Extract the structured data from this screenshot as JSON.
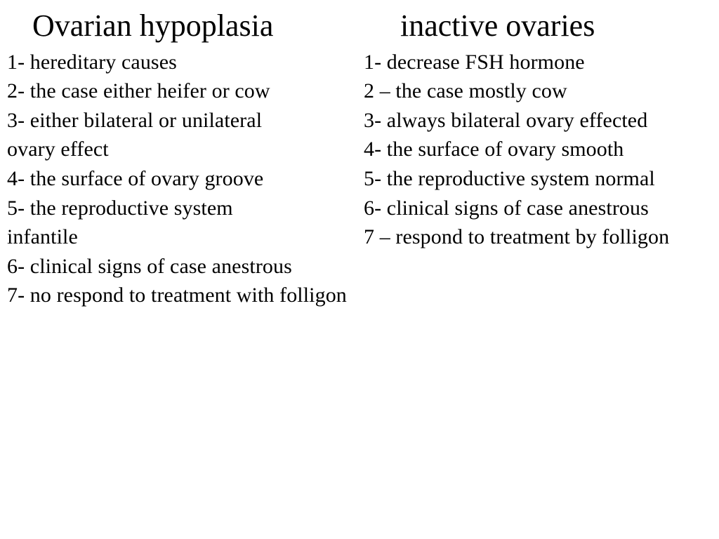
{
  "text_color": "#000000",
  "background_color": "#ffffff",
  "font_family": "Times New Roman",
  "heading_fontsize_pt": 33,
  "body_fontsize_pt": 22,
  "left": {
    "heading": "Ovarian hypoplasia",
    "items": [
      "1- hereditary causes",
      "2- the case either heifer or cow",
      "3-  either bilateral or unilateral",
      " ovary effect",
      "4-  the surface of ovary groove",
      " 5- the reproductive system",
      " infantile",
      "6- clinical signs of case anestrous",
      "7- no respond  to treatment with  folligon"
    ]
  },
  "right": {
    "heading": "inactive ovaries",
    "items": [
      "1- decrease FSH hormone",
      "2 – the case mostly cow",
      "3- always  bilateral ovary effected",
      "4- the surface of ovary smooth",
      "5- the reproductive system normal",
      "6- clinical signs of case anestrous",
      "7 – respond to treatment by folligon"
    ],
    "justify_last_index": 6
  }
}
